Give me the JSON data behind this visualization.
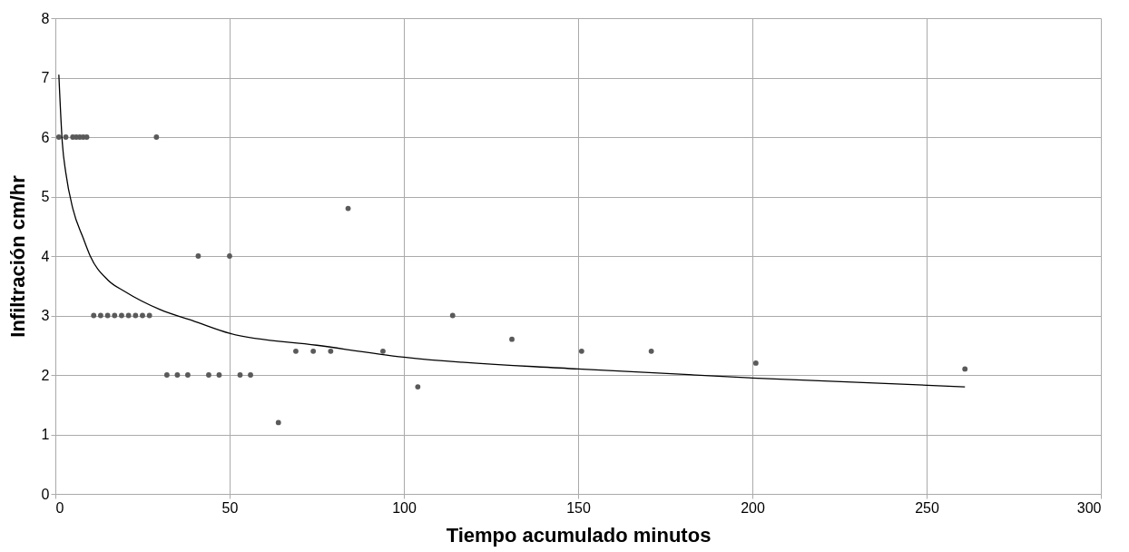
{
  "chart_data": {
    "type": "scatter",
    "xlabel": "Tiempo acumulado minutos",
    "ylabel": "Infiltración cm/hr",
    "xlim": [
      0,
      300
    ],
    "xticks": [
      0,
      50,
      100,
      150,
      200,
      250,
      300
    ],
    "ylim": [
      0,
      8
    ],
    "yticks": [
      0,
      1,
      2,
      3,
      4,
      5,
      6,
      7,
      8
    ],
    "grid": true,
    "series": [
      {
        "color": "#5a5a5a",
        "marker": "circle",
        "x": [
          1,
          3,
          5,
          6,
          7,
          8,
          9,
          11,
          13,
          15,
          17,
          19,
          21,
          23,
          25,
          27,
          29,
          32,
          35,
          38,
          41,
          44,
          47,
          50,
          53,
          56,
          64,
          69,
          74,
          79,
          84,
          94,
          104,
          114,
          131,
          151,
          171,
          201,
          261
        ],
        "values": [
          6,
          6,
          6,
          6,
          6,
          6,
          6,
          3,
          3,
          3,
          3,
          3,
          3,
          3,
          3,
          3,
          6,
          2,
          2,
          2,
          4,
          2,
          2,
          4,
          2,
          2,
          1.2,
          2.4,
          2.4,
          2.4,
          4.8,
          2.4,
          1.8,
          3,
          2.6,
          2.4,
          2.4,
          2.2,
          2.1
        ]
      },
      {
        "type": "line",
        "color": "#000000",
        "marker": "none",
        "line_style": "solid",
        "x": [
          1,
          2,
          3,
          5,
          8,
          10,
          15,
          20,
          30,
          40,
          50,
          75,
          100,
          150,
          200,
          261
        ],
        "values": [
          7.05,
          5.9,
          5.4,
          4.8,
          4.3,
          4.0,
          3.6,
          3.4,
          3.1,
          2.9,
          2.7,
          2.5,
          2.3,
          2.1,
          1.95,
          1.8
        ]
      }
    ]
  }
}
